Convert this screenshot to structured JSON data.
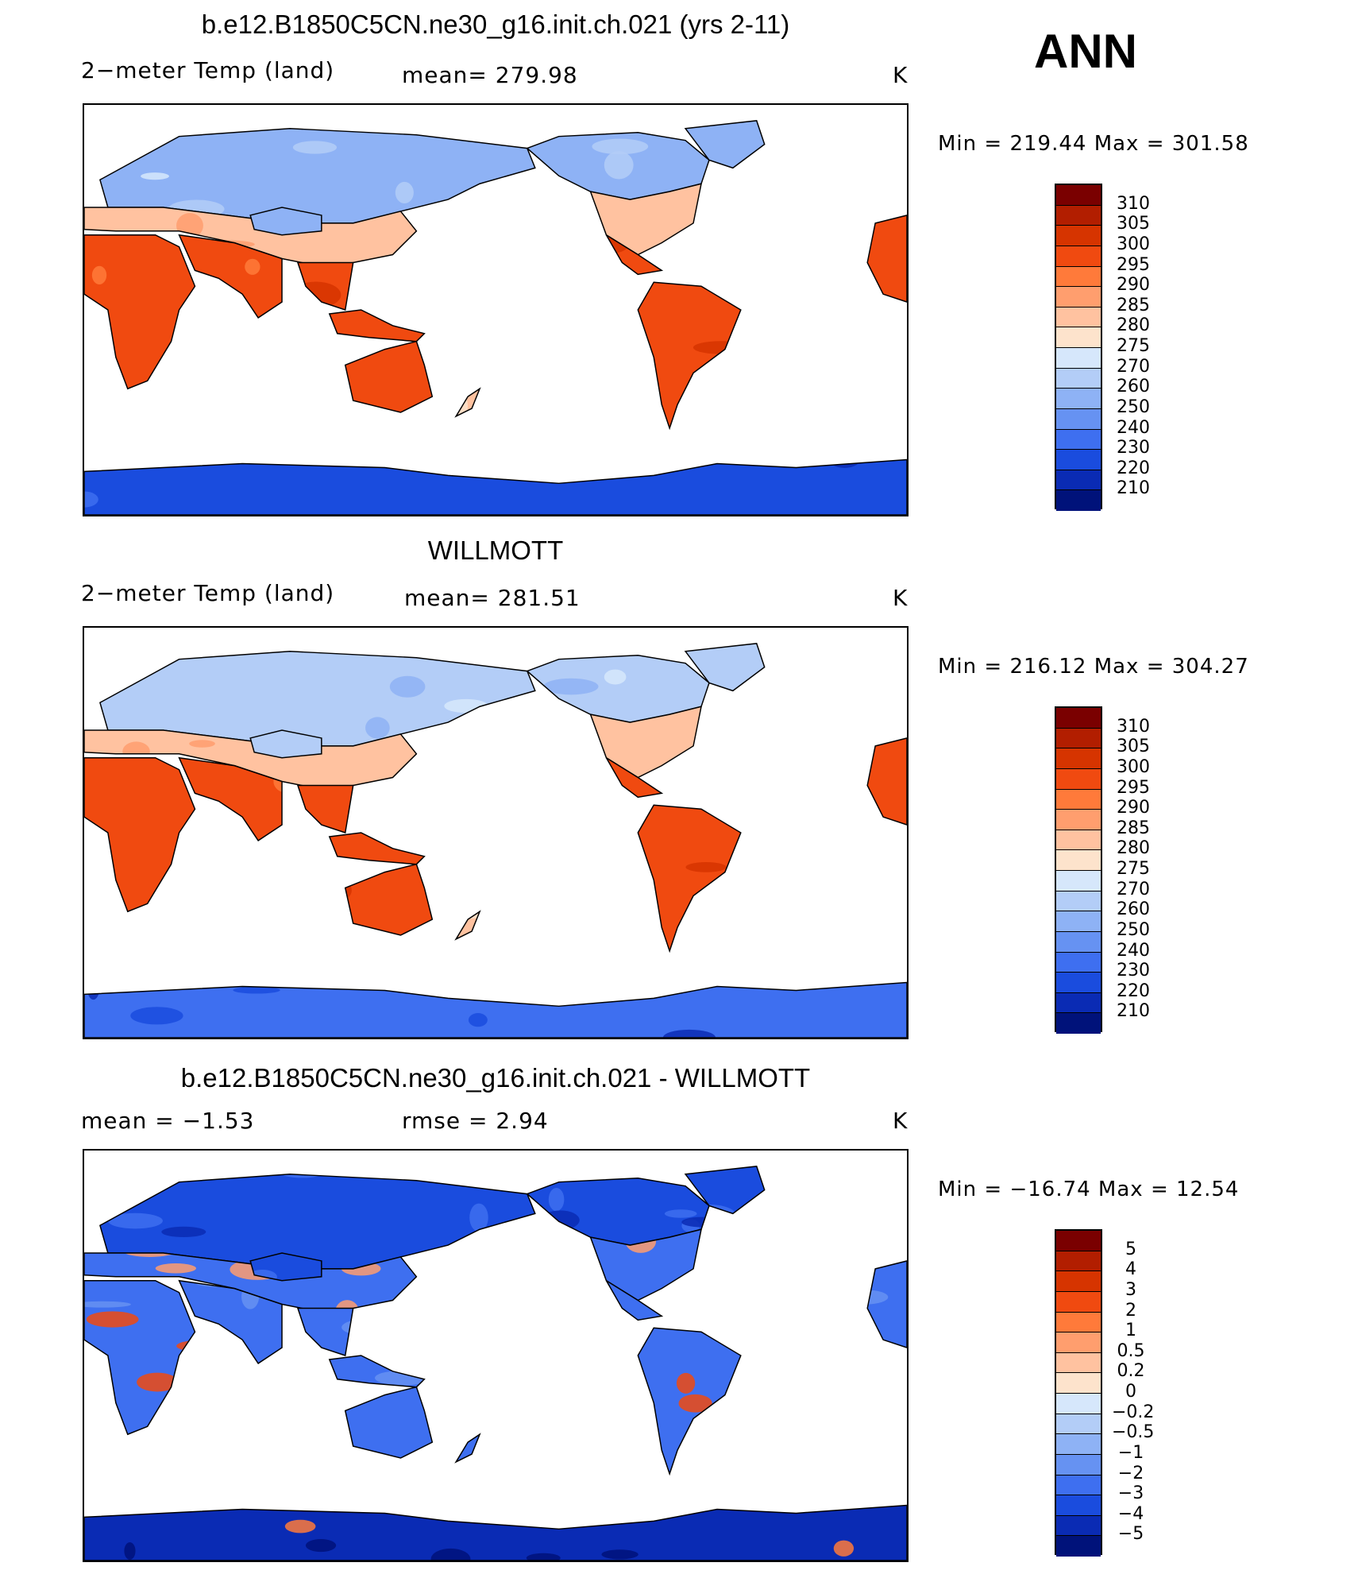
{
  "season": "ANN",
  "panels": [
    {
      "title": "b.e12.B1850C5CN.ne30_g16.init.ch.021 (yrs 2-11)",
      "left": "2−meter Temp (land)",
      "center": "mean=  279.98",
      "right": "K",
      "minmax": "Min  =  219.44  Max  =  301.58",
      "colorbar": {
        "labels": [
          "310",
          "305",
          "300",
          "295",
          "290",
          "285",
          "280",
          "275",
          "270",
          "260",
          "250",
          "240",
          "230",
          "220",
          "210"
        ],
        "colors": [
          "#7a0000",
          "#b21e00",
          "#d63400",
          "#f04a10",
          "#ff7a3a",
          "#ff9e6e",
          "#ffc2a0",
          "#fde3cc",
          "#d6e7fb",
          "#b3cdf7",
          "#8eb2f5",
          "#6692f2",
          "#3e6ff0",
          "#1a4cde",
          "#0a2bb4",
          "#00127a"
        ]
      },
      "mode": "model"
    },
    {
      "title": "WILLMOTT",
      "left": "2−meter Temp (land)",
      "center": "mean=  281.51",
      "right": "K",
      "minmax": "Min  =  216.12  Max  =  304.27",
      "colorbar": {
        "labels": [
          "310",
          "305",
          "300",
          "295",
          "290",
          "285",
          "280",
          "275",
          "270",
          "260",
          "250",
          "240",
          "230",
          "220",
          "210"
        ],
        "colors": [
          "#7a0000",
          "#b21e00",
          "#d63400",
          "#f04a10",
          "#ff7a3a",
          "#ff9e6e",
          "#ffc2a0",
          "#fde3cc",
          "#d6e7fb",
          "#b3cdf7",
          "#8eb2f5",
          "#6692f2",
          "#3e6ff0",
          "#1a4cde",
          "#0a2bb4",
          "#00127a"
        ]
      },
      "mode": "obs"
    },
    {
      "title": "b.e12.B1850C5CN.ne30_g16.init.ch.021 - WILLMOTT",
      "left": "mean  =     −1.53",
      "center": "rmse  =      2.94",
      "right": "K",
      "minmax": "Min  =  −16.74  Max  =     12.54",
      "colorbar": {
        "labels": [
          "5",
          "4",
          "3",
          "2",
          "1",
          "0.5",
          "0.2",
          "0",
          "−0.2",
          "−0.5",
          "−1",
          "−2",
          "−3",
          "−4",
          "−5"
        ],
        "colors": [
          "#7a0000",
          "#b21e00",
          "#d63400",
          "#f04a10",
          "#ff7a3a",
          "#ff9e6e",
          "#ffc2a0",
          "#fde3cc",
          "#d6e7fb",
          "#b3cdf7",
          "#8eb2f5",
          "#6692f2",
          "#3e6ff0",
          "#1a4cde",
          "#0a2bb4",
          "#00127a"
        ]
      },
      "mode": "diff"
    }
  ]
}
